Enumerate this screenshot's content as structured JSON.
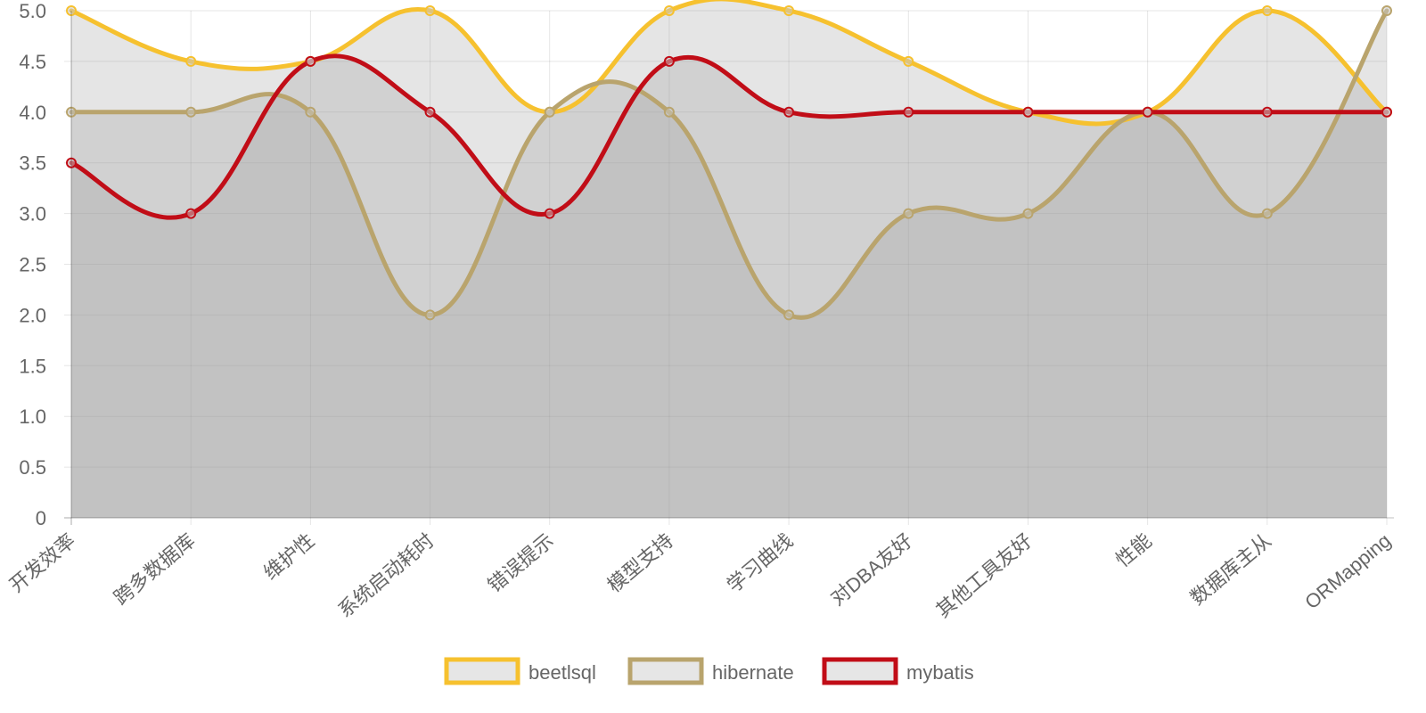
{
  "chart_data": {
    "type": "area",
    "categories": [
      "开发效率",
      "跨多数据库",
      "维护性",
      "系统启动耗时",
      "错误提示",
      "模型支持",
      "学习曲线",
      "对DBA友好",
      "其他工具友好",
      "性能",
      "数据库主从",
      "ORMapping"
    ],
    "series": [
      {
        "name": "beetlsql",
        "values": [
          5,
          4.5,
          4.5,
          5,
          4,
          5,
          5,
          4.5,
          4,
          4,
          5,
          4
        ],
        "color": "#f6c12f"
      },
      {
        "name": "hibernate",
        "values": [
          4,
          4,
          4,
          2,
          4,
          4,
          2,
          3,
          3,
          4,
          3,
          5
        ],
        "color": "#b9a46d"
      },
      {
        "name": "mybatis",
        "values": [
          3.5,
          3,
          4.5,
          4,
          3,
          4.5,
          4,
          4,
          4,
          4,
          4,
          4
        ],
        "color": "#c10d17"
      }
    ],
    "ylim": [
      0,
      5
    ],
    "yticks": [
      "0",
      "0.5",
      "1.0",
      "1.5",
      "2.0",
      "2.5",
      "3.0",
      "3.5",
      "4.0",
      "4.5",
      "5.0"
    ],
    "fill_color": "rgba(150,150,150,0.25)",
    "smooth": true,
    "grid": true,
    "legend": "bottom-center"
  }
}
